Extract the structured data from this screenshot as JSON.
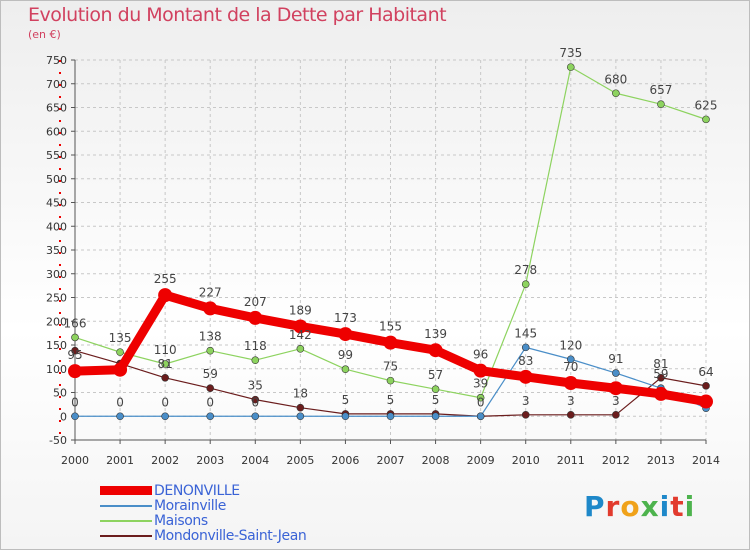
{
  "title": "Evolution du Montant de la Dette par Habitant",
  "subtitle": "(en €)",
  "logo": {
    "text": "Proxiti",
    "colors": [
      "#1e88c9",
      "#e23b2e",
      "#f0a21a",
      "#4db34d",
      "#1e88c9",
      "#e23b2e",
      "#4db34d"
    ]
  },
  "chart_data": {
    "type": "line",
    "x": [
      "2000",
      "2001",
      "2002",
      "2003",
      "2004",
      "2005",
      "2006",
      "2007",
      "2008",
      "2009",
      "2010",
      "2011",
      "2012",
      "2013",
      "2014"
    ],
    "ylim": [
      -50,
      750
    ],
    "yticks": [
      -50,
      0,
      50,
      100,
      150,
      200,
      250,
      300,
      350,
      400,
      450,
      500,
      550,
      600,
      650,
      700,
      750
    ],
    "grid": true,
    "legend": "bottom-left",
    "series": [
      {
        "name": "Mondonville-Saint-Jean",
        "color": "#6b1d1d",
        "width": 1.2,
        "values": [
          138,
          111,
          81,
          59,
          35,
          18,
          5,
          5,
          5,
          0,
          3,
          3,
          3,
          81,
          64
        ],
        "labels": [
          "",
          "",
          "81",
          "59",
          "35",
          "18",
          "5",
          "5",
          "5",
          "0",
          "3",
          "3",
          "3",
          "81",
          "64"
        ]
      },
      {
        "name": "Morainville",
        "color": "#4a8ec8",
        "width": 1.2,
        "values": [
          0,
          0,
          0,
          0,
          0,
          0,
          0,
          0,
          0,
          0,
          145,
          120,
          91,
          59,
          17
        ],
        "labels": [
          "0",
          "0",
          "0",
          "0",
          "0",
          "",
          "",
          "",
          "",
          "",
          "145",
          "120",
          "91",
          "59",
          ""
        ]
      },
      {
        "name": "Maisons",
        "color": "#8dd35f",
        "width": 1.2,
        "values": [
          166,
          135,
          110,
          138,
          118,
          142,
          99,
          75,
          57,
          39,
          278,
          735,
          680,
          657,
          625
        ],
        "labels": [
          "166",
          "135",
          "110",
          "138",
          "118",
          "142",
          "99",
          "75",
          "57",
          "39",
          "278",
          "735",
          "680",
          "657",
          "625"
        ]
      },
      {
        "name": "DENONVILLE",
        "color": "#ee0000",
        "width": 9,
        "values": [
          95,
          98,
          255,
          227,
          207,
          189,
          173,
          155,
          139,
          96,
          83,
          70,
          59,
          47,
          31
        ],
        "labels": [
          "95",
          "",
          "255",
          "227",
          "207",
          "189",
          "173",
          "155",
          "139",
          "96",
          "83",
          "70",
          "",
          "",
          ""
        ]
      }
    ]
  }
}
